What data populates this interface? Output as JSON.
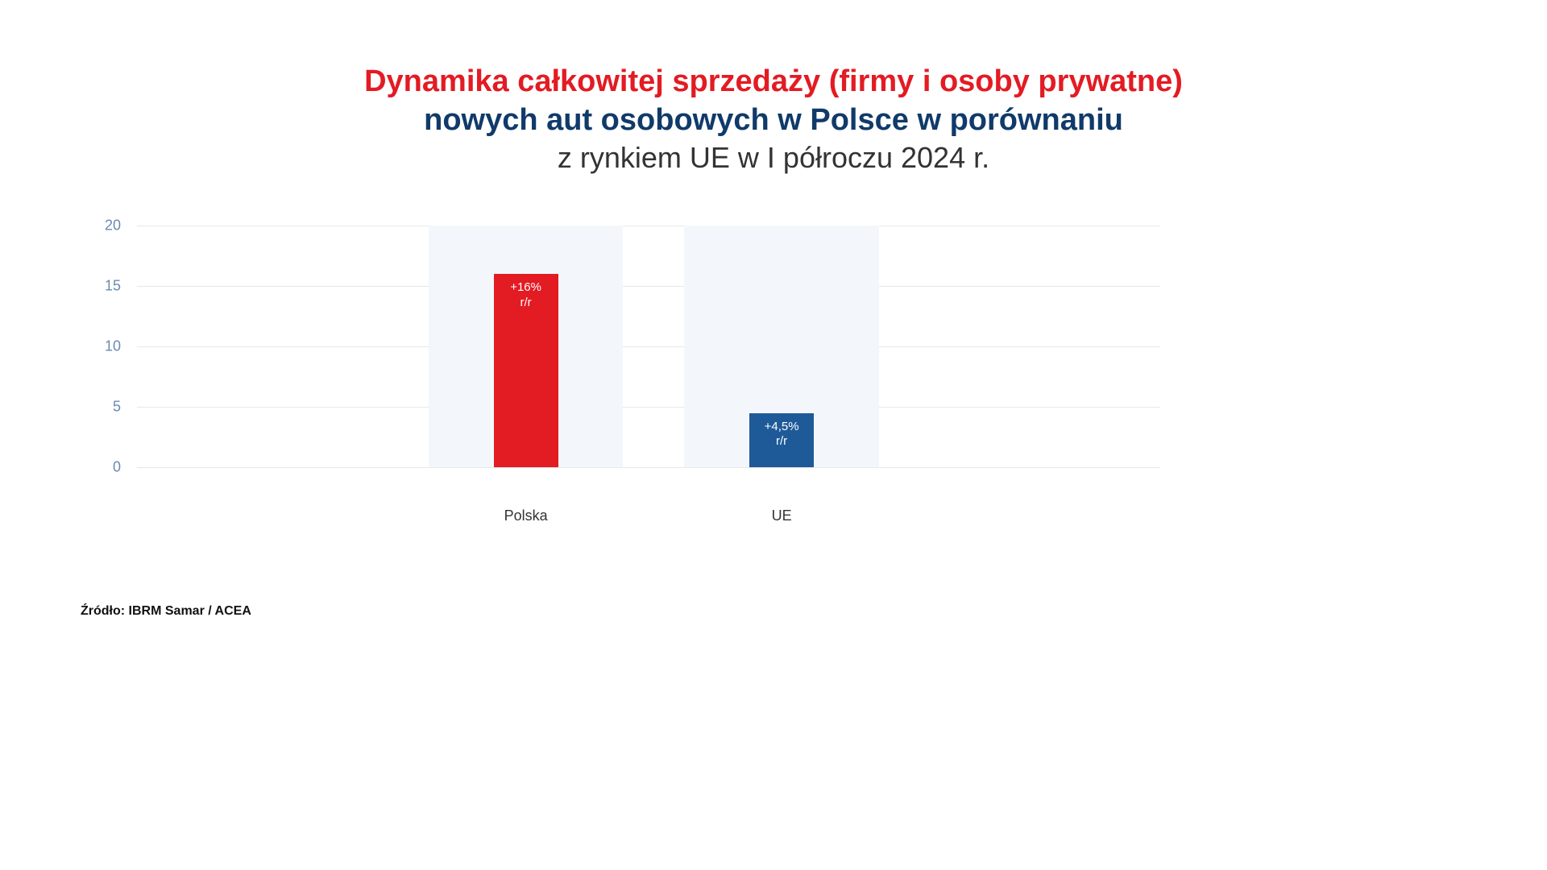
{
  "title": {
    "line1": "Dynamika całkowitej sprzedaży (firmy i osoby prywatne)",
    "line1_color": "#e31b23",
    "line2": "nowych aut osobowych w Polsce w porównaniu",
    "line2_color": "#103a6a",
    "line3": "z rynkiem UE w I półroczu 2024 r.",
    "line3_color": "#333333"
  },
  "chart": {
    "type": "bar",
    "ylim": [
      0,
      20
    ],
    "ytick_step": 5,
    "yticks": [
      0,
      5,
      10,
      15,
      20
    ],
    "ytick_color": "#6a8bb0",
    "ytick_fontsize": 18,
    "grid_color": "#e8e8e8",
    "category_bg_color": "#f3f7fb",
    "category_bg_width_pct": 19,
    "bar_width_pct": 6.3,
    "bars": [
      {
        "category": "Polska",
        "value": 16,
        "color": "#e31b23",
        "label_line1": "+16%",
        "label_line2": "r/r",
        "center_pct": 38
      },
      {
        "category": "UE",
        "value": 4.5,
        "color": "#1f5a98",
        "label_line1": "+4,5%",
        "label_line2": "r/r",
        "center_pct": 63
      }
    ],
    "x_label_color": "#333333",
    "x_label_fontsize": 18
  },
  "source": {
    "text": "Źródło: IBRM Samar / ACEA"
  }
}
